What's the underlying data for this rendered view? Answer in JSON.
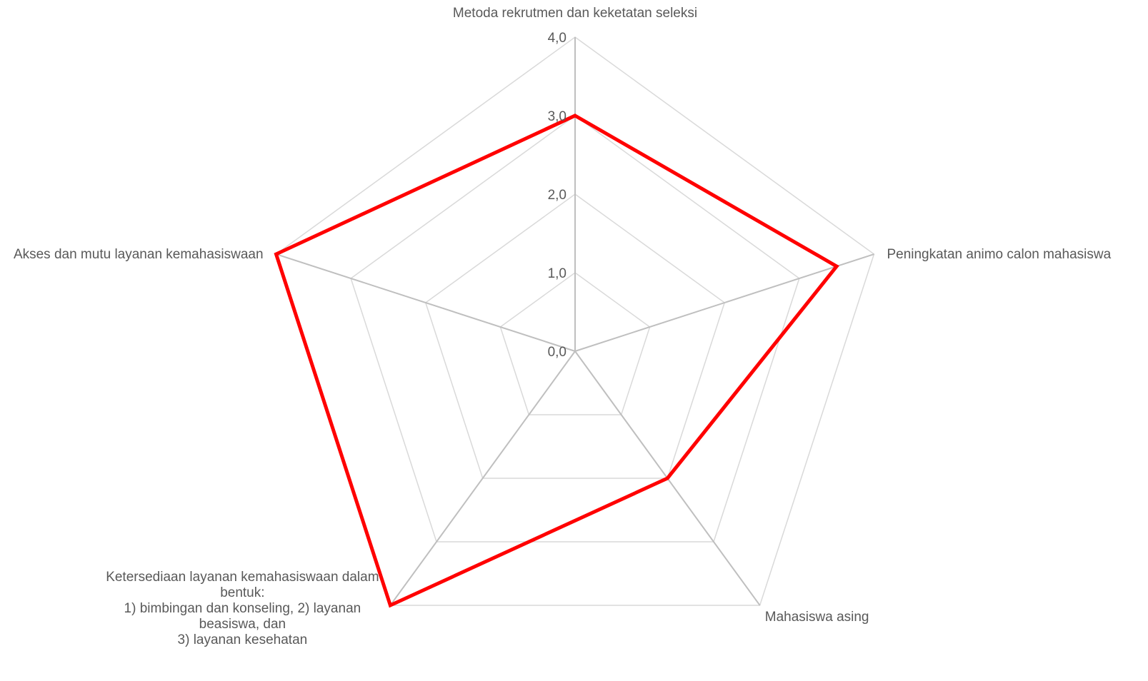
{
  "chart_data": {
    "type": "radar",
    "categories": [
      [
        "Metoda rekrutmen dan keketatan seleksi"
      ],
      [
        "Peningkatan animo calon mahasiswa"
      ],
      [
        "Mahasiswa asing"
      ],
      [
        "Ketersediaan layanan kemahasiswaan dalam",
        "bentuk:",
        "1) bimbingan dan konseling, 2) layanan",
        "beasiswa, dan",
        "3) layanan kesehatan"
      ],
      [
        "Akses dan mutu layanan kemahasiswaan"
      ]
    ],
    "series": [
      {
        "values": [
          3.0,
          3.5,
          2.0,
          4.0,
          4.0
        ],
        "color": "#ff0000"
      }
    ],
    "ticks": [
      "0,0",
      "1,0",
      "2,0",
      "3,0",
      "4,0"
    ],
    "rlim": [
      0,
      4
    ],
    "grid": true,
    "legend": "none"
  }
}
